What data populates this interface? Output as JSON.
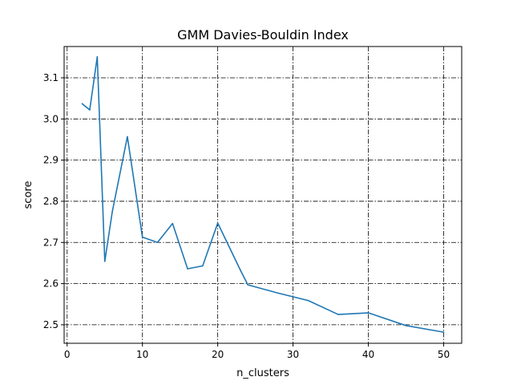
{
  "chart_data": {
    "type": "line",
    "title": "GMM Davies-Bouldin Index",
    "xlabel": "n_clusters",
    "ylabel": "score",
    "xlim": [
      -0.4,
      52.4
    ],
    "ylim": [
      2.455,
      3.176
    ],
    "xticks": [
      0,
      10,
      20,
      30,
      40,
      50
    ],
    "yticks": [
      2.5,
      2.6,
      2.7,
      2.8,
      2.9,
      3.0,
      3.1
    ],
    "ytick_labels": [
      "2.5",
      "2.6",
      "2.7",
      "2.8",
      "2.9",
      "3.0",
      "3.1"
    ],
    "grid": true,
    "grid_style": "dashdot",
    "series": [
      {
        "color": "#1f77b4",
        "x": [
          2,
          3,
          4,
          5,
          6,
          8,
          10,
          12,
          14,
          16,
          18,
          20,
          23,
          24,
          28,
          32,
          36,
          40,
          45,
          50
        ],
        "y": [
          3.037,
          3.022,
          3.151,
          2.654,
          2.775,
          2.957,
          2.713,
          2.7,
          2.746,
          2.636,
          2.643,
          2.747,
          2.633,
          2.597,
          2.577,
          2.559,
          2.525,
          2.529,
          2.498,
          2.482
        ]
      }
    ]
  }
}
